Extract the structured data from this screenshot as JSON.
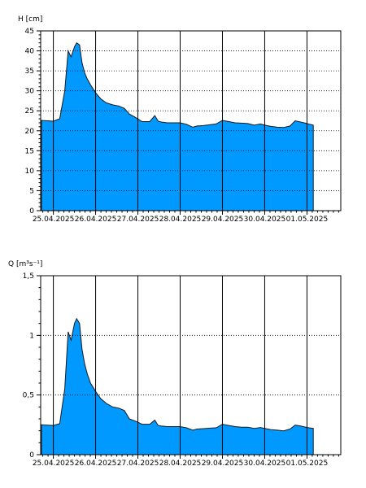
{
  "colors": {
    "fill": "#0099FF",
    "stroke": "#1a1a1a",
    "grid_h": "#000000",
    "grid_v": "#000000",
    "frame": "#000000"
  },
  "chart_data": [
    {
      "type": "area",
      "ylabel": "H [cm]",
      "ylim": [
        0,
        45
      ],
      "yticks": [
        0,
        5,
        10,
        15,
        20,
        25,
        30,
        35,
        40,
        45
      ],
      "ytick_labels": [
        "0",
        "5",
        "10",
        "15",
        "20",
        "25",
        "30",
        "35",
        "40",
        "45"
      ],
      "xlim": [
        -0.3,
        6.8
      ],
      "xticks": [
        0,
        1,
        2,
        3,
        4,
        5,
        6
      ],
      "xtick_labels": [
        "25.04.2025",
        "26.04.2025",
        "27.04.2025",
        "28.04.2025",
        "29.04.2025",
        "30.04.2025",
        "01.05.2025"
      ],
      "grid": {
        "horizontal": "dotted",
        "vertical": "solid"
      },
      "series": [
        {
          "x": [
            -0.28,
            0.0,
            0.15,
            0.27,
            0.35,
            0.42,
            0.5,
            0.55,
            0.62,
            0.68,
            0.74,
            0.8,
            0.88,
            1.0,
            1.12,
            1.25,
            1.4,
            1.55,
            1.68,
            1.8,
            1.95,
            2.1,
            2.28,
            2.4,
            2.48,
            2.55,
            2.7,
            2.85,
            3.0,
            3.15,
            3.3,
            3.4,
            3.55,
            3.7,
            3.85,
            4.0,
            4.15,
            4.3,
            4.45,
            4.6,
            4.75,
            4.9,
            5.0,
            5.15,
            5.3,
            5.45,
            5.6,
            5.72,
            5.85,
            6.0,
            6.15
          ],
          "y": [
            22.6,
            22.4,
            23.0,
            30.0,
            40.0,
            38.5,
            41.0,
            42.0,
            41.5,
            37.0,
            34.5,
            33.0,
            31.5,
            29.5,
            28.0,
            27.0,
            26.5,
            26.2,
            25.6,
            24.2,
            23.3,
            22.3,
            22.3,
            23.8,
            22.4,
            22.2,
            22.0,
            22.0,
            22.0,
            21.6,
            20.9,
            21.2,
            21.3,
            21.5,
            21.7,
            22.6,
            22.3,
            22.0,
            21.9,
            21.8,
            21.4,
            21.7,
            21.4,
            21.1,
            20.9,
            20.8,
            21.2,
            22.5,
            22.2,
            21.8,
            21.4
          ]
        }
      ]
    },
    {
      "type": "area",
      "ylabel": "Q [m³s⁻¹]",
      "ylim": [
        0,
        1.5
      ],
      "yticks": [
        0,
        0.5,
        1,
        1.5
      ],
      "ytick_labels": [
        "0",
        "0,5",
        "1",
        "1,5"
      ],
      "xlim": [
        -0.3,
        6.8
      ],
      "xticks": [
        0,
        1,
        2,
        3,
        4,
        5,
        6
      ],
      "xtick_labels": [
        "25.04.2025",
        "26.04.2025",
        "27.04.2025",
        "28.04.2025",
        "29.04.2025",
        "30.04.2025",
        "01.05.2025"
      ],
      "grid": {
        "horizontal": "dotted",
        "vertical": "solid"
      },
      "series": [
        {
          "x": [
            -0.28,
            0.0,
            0.15,
            0.27,
            0.35,
            0.42,
            0.5,
            0.55,
            0.62,
            0.68,
            0.74,
            0.8,
            0.88,
            1.0,
            1.12,
            1.25,
            1.4,
            1.55,
            1.68,
            1.8,
            1.95,
            2.1,
            2.28,
            2.4,
            2.48,
            2.55,
            2.7,
            2.85,
            3.0,
            3.15,
            3.3,
            3.4,
            3.55,
            3.7,
            3.85,
            4.0,
            4.15,
            4.3,
            4.45,
            4.6,
            4.75,
            4.9,
            5.0,
            5.15,
            5.3,
            5.45,
            5.6,
            5.72,
            5.85,
            6.0,
            6.15
          ],
          "y": [
            0.25,
            0.245,
            0.26,
            0.55,
            1.03,
            0.96,
            1.1,
            1.14,
            1.1,
            0.88,
            0.76,
            0.68,
            0.6,
            0.53,
            0.47,
            0.43,
            0.4,
            0.39,
            0.37,
            0.3,
            0.28,
            0.255,
            0.255,
            0.29,
            0.245,
            0.24,
            0.235,
            0.235,
            0.235,
            0.225,
            0.205,
            0.215,
            0.218,
            0.222,
            0.225,
            0.255,
            0.245,
            0.235,
            0.23,
            0.23,
            0.22,
            0.228,
            0.22,
            0.21,
            0.205,
            0.2,
            0.215,
            0.248,
            0.24,
            0.228,
            0.22
          ]
        }
      ]
    }
  ]
}
